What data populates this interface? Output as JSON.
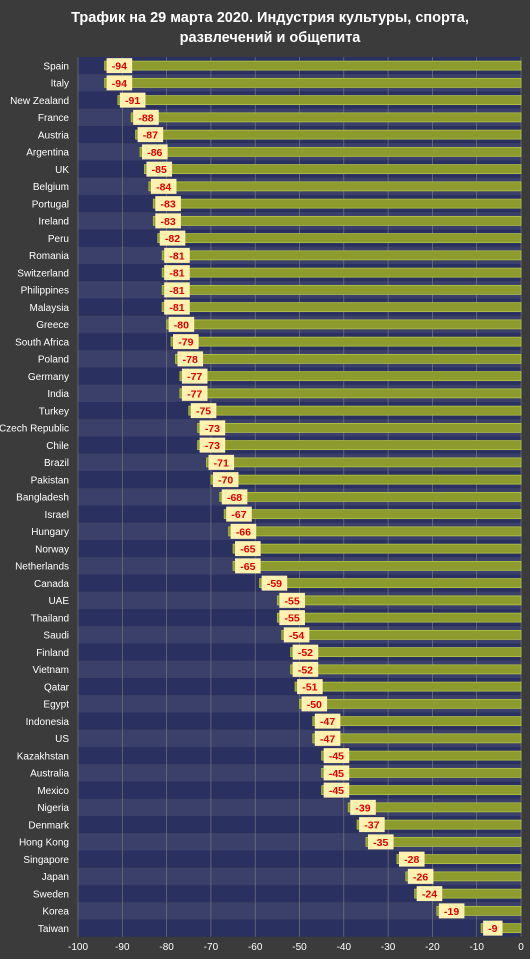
{
  "chart_data": {
    "type": "bar",
    "title_lines": [
      "Трафик на 29 марта 2020. Индустрия культуры, спорта,",
      "развлечений и общепита"
    ],
    "xlim": [
      -100,
      0
    ],
    "xticks": [
      -100,
      -90,
      -80,
      -70,
      -60,
      -50,
      -40,
      -30,
      -20,
      -10,
      0
    ],
    "grid": true,
    "data_labels": true,
    "categories": [
      "Spain",
      "Italy",
      "New Zealand",
      "France",
      "Austria",
      "Argentina",
      "UK",
      "Belgium",
      "Portugal",
      "Ireland",
      "Peru",
      "Romania",
      "Switzerland",
      "Philippines",
      "Malaysia",
      "Greece",
      "South Africa",
      "Poland",
      "Germany",
      "India",
      "Turkey",
      "Czech Republic",
      "Chile",
      "Brazil",
      "Pakistan",
      "Bangladesh",
      "Israel",
      "Hungary",
      "Norway",
      "Netherlands",
      "Canada",
      "UAE",
      "Thailand",
      "Saudi",
      "Finland",
      "Vietnam",
      "Qatar",
      "Egypt",
      "Indonesia",
      "US",
      "Kazakhstan",
      "Australia",
      "Mexico",
      "Nigeria",
      "Denmark",
      "Hong Kong",
      "Singapore",
      "Japan",
      "Sweden",
      "Korea",
      "Taiwan"
    ],
    "values": [
      -94,
      -94,
      -91,
      -88,
      -87,
      -86,
      -85,
      -84,
      -83,
      -83,
      -82,
      -81,
      -81,
      -81,
      -81,
      -80,
      -79,
      -78,
      -77,
      -77,
      -75,
      -73,
      -73,
      -71,
      -70,
      -68,
      -67,
      -66,
      -65,
      -65,
      -59,
      -55,
      -55,
      -54,
      -52,
      -52,
      -51,
      -50,
      -47,
      -47,
      -45,
      -45,
      -45,
      -39,
      -37,
      -35,
      -28,
      -26,
      -24,
      -19,
      -9
    ],
    "colors": {
      "background": "#3b3b3b",
      "stripe_dark": "#2a3060",
      "stripe_light": "#3a406a",
      "bar": "#8c9a2e",
      "bar_edge": "#b6c548",
      "label_box": "#fff1b0",
      "label_text": "#e00000",
      "text": "#ffffff",
      "grid": "#777777"
    }
  }
}
